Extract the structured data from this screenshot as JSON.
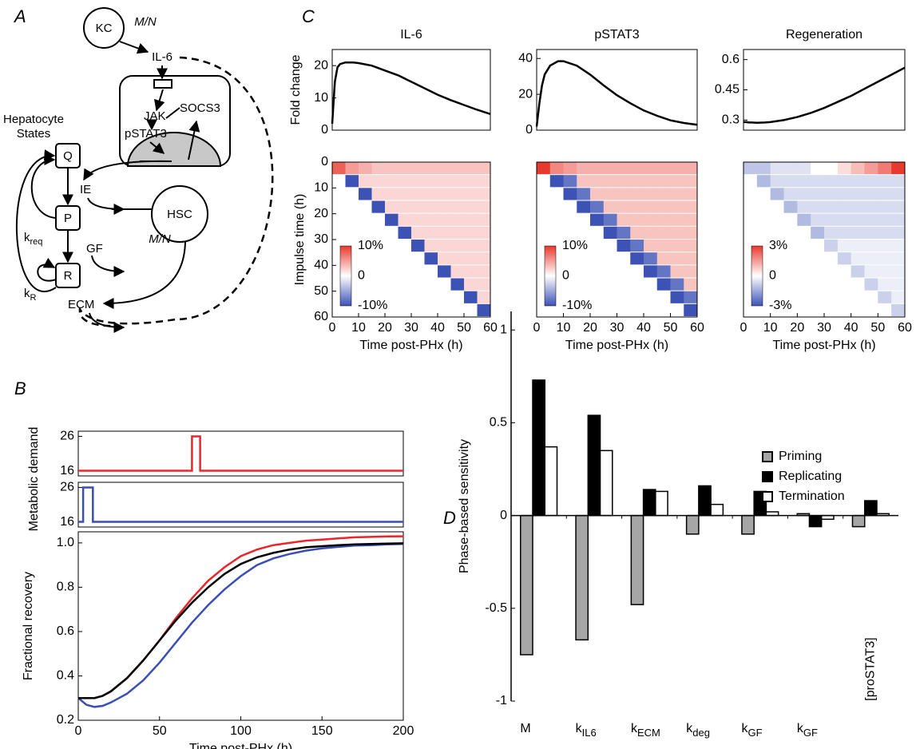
{
  "panel_labels": [
    "A",
    "B",
    "C",
    "D"
  ],
  "diagram": {
    "kc": "KC",
    "mn": "M/N",
    "il6": "IL-6",
    "jak": "JAK",
    "socs3": "SOCS3",
    "pstat3": "pSTAT3",
    "hepatocyte_states": [
      "Hepatocyte",
      "States"
    ],
    "q": "Q",
    "p": "P",
    "r": "R",
    "ie": "IE",
    "gf": "GF",
    "ecm": "ECM",
    "hsc": "HSC",
    "k_req": {
      "base": "k",
      "sub": "req"
    },
    "k_r": {
      "base": "k",
      "sub": "R"
    }
  },
  "chart_data": [
    {
      "type": "line",
      "title": "IL-6",
      "ylabel": "Fold change",
      "x": [
        0,
        1,
        2,
        3,
        5,
        8,
        10,
        15,
        20,
        25,
        30,
        35,
        40,
        45,
        50,
        55,
        60
      ],
      "series": [
        {
          "color": "#000000",
          "values": [
            2,
            15,
            19.5,
            20.5,
            21,
            21,
            20.8,
            20,
            18.5,
            17,
            15,
            13,
            11,
            9.3,
            7.8,
            6.3,
            5
          ]
        }
      ],
      "xlim": [
        0,
        60
      ],
      "ylim": [
        0,
        25
      ],
      "yticks": [
        0,
        10,
        20
      ]
    },
    {
      "type": "line",
      "title": "pSTAT3",
      "x": [
        0,
        1,
        2,
        3,
        5,
        8,
        10,
        15,
        20,
        25,
        30,
        35,
        40,
        45,
        50,
        55,
        60
      ],
      "series": [
        {
          "color": "#000000",
          "values": [
            2,
            15,
            25,
            31,
            36,
            38.5,
            38.5,
            36,
            31,
            25,
            19.5,
            15,
            11,
            8,
            5.5,
            4,
            3
          ]
        }
      ],
      "xlim": [
        0,
        60
      ],
      "ylim": [
        0,
        45
      ],
      "yticks": [
        0,
        20,
        40
      ]
    },
    {
      "type": "line",
      "title": "Regeneration",
      "x": [
        0,
        1,
        2,
        3,
        5,
        8,
        10,
        15,
        20,
        25,
        30,
        35,
        40,
        45,
        50,
        55,
        60
      ],
      "series": [
        {
          "color": "#000000",
          "values": [
            0.29,
            0.29,
            0.288,
            0.288,
            0.287,
            0.288,
            0.29,
            0.3,
            0.315,
            0.335,
            0.36,
            0.39,
            0.42,
            0.455,
            0.49,
            0.525,
            0.56
          ]
        }
      ],
      "xlim": [
        0,
        60
      ],
      "ylim": [
        0.25,
        0.65
      ],
      "yticks": [
        0.3,
        0.45,
        0.6
      ]
    },
    {
      "type": "heatmap",
      "xlabel": "Time post-PHx (h)",
      "ylabel": "Impulse time (h)",
      "xlim": [
        0,
        60
      ],
      "ylim": [
        60,
        0
      ],
      "xticks": [
        0,
        10,
        20,
        30,
        40,
        50,
        60
      ],
      "yticks": [
        0,
        10,
        20,
        30,
        40,
        50,
        60
      ],
      "x_edges": [
        0,
        5,
        10,
        15,
        20,
        25,
        30,
        35,
        40,
        45,
        50,
        55,
        60
      ],
      "y_edges": [
        0,
        5,
        10,
        15,
        20,
        25,
        30,
        35,
        40,
        45,
        50,
        55,
        60
      ],
      "colors": [
        "#3d52b5",
        "#ffffff",
        "#e8392e"
      ],
      "clim": [
        -10,
        10
      ],
      "colorbar_ticks": [
        {
          "value": 10,
          "label": "10%"
        },
        0,
        {
          "value": -10,
          "label": "-10%"
        }
      ],
      "z": [
        [
          8,
          5,
          4,
          3,
          3,
          3,
          3,
          3,
          3,
          3,
          3,
          3
        ],
        [
          null,
          -10,
          2,
          2,
          2,
          2,
          2,
          2,
          2,
          2,
          2,
          2
        ],
        [
          null,
          null,
          -10,
          2,
          2,
          2,
          2,
          2,
          2,
          2,
          2,
          2
        ],
        [
          null,
          null,
          null,
          -10,
          2,
          2,
          2,
          2,
          2,
          2,
          2,
          2
        ],
        [
          null,
          null,
          null,
          null,
          -10,
          2,
          2,
          2,
          2,
          2,
          2,
          2
        ],
        [
          null,
          null,
          null,
          null,
          null,
          -10,
          2,
          2,
          2,
          2,
          2,
          2
        ],
        [
          null,
          null,
          null,
          null,
          null,
          null,
          -10,
          2,
          2,
          2,
          2,
          2
        ],
        [
          null,
          null,
          null,
          null,
          null,
          null,
          null,
          -10,
          2,
          2,
          2,
          2
        ],
        [
          null,
          null,
          null,
          null,
          null,
          null,
          null,
          null,
          -10,
          2,
          2,
          2
        ],
        [
          null,
          null,
          null,
          null,
          null,
          null,
          null,
          null,
          null,
          -10,
          2,
          2
        ],
        [
          null,
          null,
          null,
          null,
          null,
          null,
          null,
          null,
          null,
          null,
          -10,
          2
        ],
        [
          null,
          null,
          null,
          null,
          null,
          null,
          null,
          null,
          null,
          null,
          null,
          -10
        ]
      ]
    },
    {
      "type": "heatmap",
      "xlabel": "Time post-PHx (h)",
      "xlim": [
        0,
        60
      ],
      "ylim": [
        60,
        0
      ],
      "xticks": [
        0,
        10,
        20,
        30,
        40,
        50,
        60
      ],
      "x_edges": [
        0,
        5,
        10,
        15,
        20,
        25,
        30,
        35,
        40,
        45,
        50,
        55,
        60
      ],
      "y_edges": [
        0,
        5,
        10,
        15,
        20,
        25,
        30,
        35,
        40,
        45,
        50,
        55,
        60
      ],
      "colors": [
        "#3d52b5",
        "#ffffff",
        "#e8392e"
      ],
      "clim": [
        -10,
        10
      ],
      "colorbar_ticks": [
        {
          "value": 10,
          "label": "10%"
        },
        0,
        {
          "value": -10,
          "label": "-10%"
        }
      ],
      "z": [
        [
          10,
          6,
          5,
          4,
          4,
          4,
          4,
          4,
          4,
          4,
          4,
          4
        ],
        [
          null,
          -10,
          -8,
          3,
          3,
          3,
          3,
          3,
          3,
          3,
          3,
          3
        ],
        [
          null,
          null,
          -10,
          -8,
          3,
          3,
          3,
          3,
          3,
          3,
          3,
          3
        ],
        [
          null,
          null,
          null,
          -10,
          -8,
          3,
          3,
          3,
          3,
          3,
          3,
          3
        ],
        [
          null,
          null,
          null,
          null,
          -10,
          -8,
          3,
          3,
          3,
          3,
          3,
          3
        ],
        [
          null,
          null,
          null,
          null,
          null,
          -10,
          -8,
          3,
          3,
          3,
          3,
          3
        ],
        [
          null,
          null,
          null,
          null,
          null,
          null,
          -10,
          -8,
          3,
          3,
          3,
          3
        ],
        [
          null,
          null,
          null,
          null,
          null,
          null,
          null,
          -10,
          -8,
          3,
          3,
          3
        ],
        [
          null,
          null,
          null,
          null,
          null,
          null,
          null,
          null,
          -10,
          -8,
          3,
          3
        ],
        [
          null,
          null,
          null,
          null,
          null,
          null,
          null,
          null,
          null,
          -10,
          -8,
          3
        ],
        [
          null,
          null,
          null,
          null,
          null,
          null,
          null,
          null,
          null,
          null,
          -10,
          -8
        ],
        [
          null,
          null,
          null,
          null,
          null,
          null,
          null,
          null,
          null,
          null,
          null,
          -10
        ]
      ]
    },
    {
      "type": "heatmap",
      "xlabel": "Time post-PHx (h)",
      "xlim": [
        0,
        60
      ],
      "ylim": [
        60,
        0
      ],
      "xticks": [
        0,
        10,
        20,
        30,
        40,
        50,
        60
      ],
      "x_edges": [
        0,
        5,
        10,
        15,
        20,
        25,
        30,
        35,
        40,
        45,
        50,
        55,
        60
      ],
      "y_edges": [
        0,
        5,
        10,
        15,
        20,
        25,
        30,
        35,
        40,
        45,
        50,
        55,
        60
      ],
      "colors": [
        "#3d52b5",
        "#ffffff",
        "#e8392e"
      ],
      "clim": [
        -3,
        3
      ],
      "colorbar_ticks": [
        {
          "value": 3,
          "label": "3%"
        },
        0,
        {
          "value": -3,
          "label": "-3%"
        }
      ],
      "z": [
        [
          -1,
          -1,
          -0.5,
          -0.5,
          -0.5,
          0,
          0,
          0.5,
          1,
          1.5,
          2,
          3
        ],
        [
          null,
          -1.2,
          -0.6,
          -0.6,
          -0.6,
          -0.6,
          -0.6,
          -0.6,
          -0.6,
          -0.6,
          -0.6,
          -0.6
        ],
        [
          null,
          null,
          -1.2,
          -0.6,
          -0.6,
          -0.6,
          -0.6,
          -0.6,
          -0.6,
          -0.6,
          -0.6,
          -0.6
        ],
        [
          null,
          null,
          null,
          -1.2,
          -0.6,
          -0.6,
          -0.6,
          -0.6,
          -0.6,
          -0.6,
          -0.6,
          -0.6
        ],
        [
          null,
          null,
          null,
          null,
          -1.2,
          -0.6,
          -0.6,
          -0.6,
          -0.6,
          -0.6,
          -0.6,
          -0.6
        ],
        [
          null,
          null,
          null,
          null,
          null,
          -1.2,
          -0.6,
          -0.6,
          -0.6,
          -0.6,
          -0.6,
          -0.6
        ],
        [
          null,
          null,
          null,
          null,
          null,
          null,
          -0.8,
          -0.3,
          -0.3,
          -0.3,
          -0.3,
          -0.3
        ],
        [
          null,
          null,
          null,
          null,
          null,
          null,
          null,
          -0.8,
          -0.3,
          -0.3,
          -0.3,
          -0.3
        ],
        [
          null,
          null,
          null,
          null,
          null,
          null,
          null,
          null,
          -0.8,
          -0.3,
          -0.3,
          -0.3
        ],
        [
          null,
          null,
          null,
          null,
          null,
          null,
          null,
          null,
          null,
          -0.8,
          -0.3,
          -0.3
        ],
        [
          null,
          null,
          null,
          null,
          null,
          null,
          null,
          null,
          null,
          null,
          -0.8,
          -0.3
        ],
        [
          null,
          null,
          null,
          null,
          null,
          null,
          null,
          null,
          null,
          null,
          null,
          -0.8
        ]
      ]
    },
    {
      "type": "line",
      "ylabel": "Metabolic demand",
      "x": [
        0,
        70,
        70,
        75,
        75,
        200
      ],
      "series": [
        {
          "color": "#e8262b",
          "values": [
            16,
            16,
            26,
            26,
            16,
            16
          ]
        }
      ],
      "xlim": [
        0,
        200
      ],
      "ylim": [
        14.5,
        27.5
      ],
      "yticks": [
        16,
        26
      ]
    },
    {
      "type": "line",
      "x": [
        0,
        3,
        3,
        9,
        9,
        200
      ],
      "series": [
        {
          "color": "#3a4fb5",
          "values": [
            16,
            16,
            26,
            26,
            16,
            16
          ]
        }
      ],
      "xlim": [
        0,
        200
      ],
      "ylim": [
        14.5,
        27.5
      ],
      "yticks": [
        16,
        26
      ]
    },
    {
      "type": "line",
      "ylabel": "Fractional recovery",
      "xlabel": "Time post-PHx (h)",
      "x": [
        0,
        5,
        10,
        15,
        20,
        30,
        40,
        50,
        60,
        70,
        80,
        90,
        100,
        110,
        120,
        130,
        140,
        150,
        160,
        170,
        180,
        190,
        200
      ],
      "series": [
        {
          "color": "#e8262b",
          "values": [
            0.3,
            0.3,
            0.3,
            0.31,
            0.33,
            0.39,
            0.47,
            0.56,
            0.66,
            0.75,
            0.83,
            0.89,
            0.94,
            0.97,
            0.99,
            1.0,
            1.01,
            1.015,
            1.02,
            1.025,
            1.027,
            1.029,
            1.03
          ]
        },
        {
          "color": "#3a4fb5",
          "values": [
            0.3,
            0.27,
            0.26,
            0.265,
            0.28,
            0.32,
            0.38,
            0.46,
            0.55,
            0.64,
            0.72,
            0.79,
            0.85,
            0.9,
            0.93,
            0.95,
            0.965,
            0.975,
            0.982,
            0.988,
            0.99,
            0.993,
            0.995
          ]
        },
        {
          "color": "#000000",
          "values": [
            0.3,
            0.3,
            0.3,
            0.31,
            0.33,
            0.39,
            0.47,
            0.56,
            0.65,
            0.73,
            0.8,
            0.86,
            0.905,
            0.935,
            0.955,
            0.97,
            0.98,
            0.985,
            0.99,
            0.993,
            0.995,
            0.997,
            0.998
          ]
        }
      ],
      "xlim": [
        0,
        200
      ],
      "ylim": [
        0.2,
        1.05
      ],
      "xticks": [
        0,
        50,
        100,
        150,
        200
      ],
      "yticks": [
        0.2,
        0.4,
        0.6,
        0.8,
        {
          "value": 1,
          "label": "1.0"
        }
      ]
    },
    {
      "type": "bar",
      "ylabel": "Phase-based sensitivity",
      "categories": [
        "M",
        "k",
        "k",
        "k",
        "k",
        "k",
        "[proSTAT3]"
      ],
      "category_subscripts": [
        null,
        "IL6",
        "ECM",
        "deg",
        "GF",
        "GF",
        null
      ],
      "series": [
        {
          "name": "Priming",
          "color": "#a6a6a6",
          "values": [
            -0.75,
            -0.67,
            -0.48,
            -0.1,
            -0.1,
            0.01,
            -0.06
          ]
        },
        {
          "name": "Replicating",
          "color": "#000000",
          "values": [
            0.73,
            0.54,
            0.14,
            0.16,
            0.13,
            -0.06,
            0.08
          ]
        },
        {
          "name": "Termination",
          "color": "#ffffff",
          "values": [
            0.37,
            0.35,
            0.13,
            0.06,
            0.02,
            -0.02,
            0.01
          ]
        }
      ],
      "edgecolor": "#000000",
      "ylim": [
        -1,
        1.1
      ],
      "yticks": [
        -1,
        -0.5,
        0,
        0.5,
        1
      ],
      "legend": "upper right"
    }
  ]
}
